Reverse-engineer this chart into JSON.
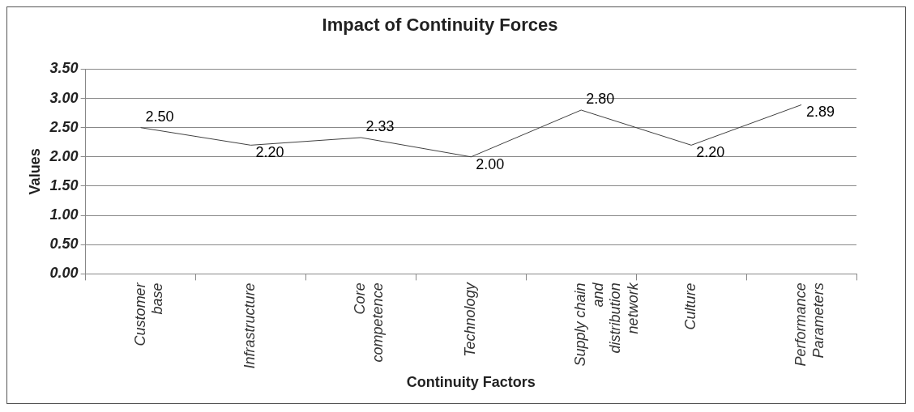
{
  "chart_data": {
    "type": "line",
    "title": "Impact of Continuity Forces",
    "xlabel": "Continuity Factors",
    "ylabel": "Values",
    "categories": [
      "Customer base",
      "Infrastructure",
      "Core competence",
      "Technology",
      "Supply chain and distribution network",
      "Culture",
      "Performance Parameters"
    ],
    "series": [
      {
        "color": "#404040",
        "values": [
          2.5,
          2.2,
          2.33,
          2.0,
          2.8,
          2.2,
          2.89
        ],
        "value_labels": [
          "2.50",
          "2.20",
          "2.33",
          "2.00",
          "2.80",
          "2.20",
          "2.89"
        ]
      }
    ],
    "ylim": [
      0,
      3.5
    ],
    "yticks": [
      {
        "value": 0,
        "label": "0.00"
      },
      {
        "value": 0.5,
        "label": "0.50"
      },
      {
        "value": 1,
        "label": "1.00"
      },
      {
        "value": 1.5,
        "label": "1.50"
      },
      {
        "value": 2,
        "label": "2.00"
      },
      {
        "value": 2.5,
        "label": "2.50"
      },
      {
        "value": 3,
        "label": "3.00"
      },
      {
        "value": 3.5,
        "label": "3.50"
      }
    ],
    "grid": "y",
    "legend": false,
    "marker": "none",
    "line_style": "solid"
  }
}
